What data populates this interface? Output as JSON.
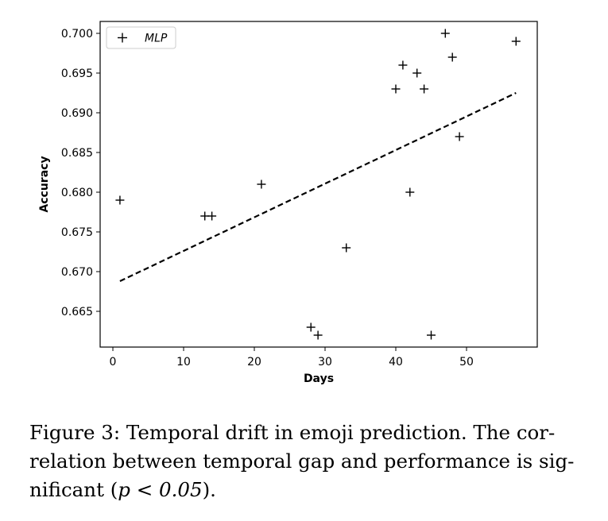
{
  "chart_data": {
    "type": "scatter",
    "xlabel": "Days",
    "ylabel": "Accuracy",
    "xlim": [
      -1.8,
      60
    ],
    "ylim": [
      0.6605,
      0.7015
    ],
    "xticks": [
      0,
      10,
      20,
      30,
      40,
      50
    ],
    "xtick_labels": [
      "0",
      "10",
      "20",
      "30",
      "40",
      "50"
    ],
    "yticks": [
      0.665,
      0.67,
      0.675,
      0.68,
      0.685,
      0.69,
      0.695,
      0.7
    ],
    "ytick_labels": [
      "0.665",
      "0.670",
      "0.675",
      "0.680",
      "0.685",
      "0.690",
      "0.695",
      "0.700"
    ],
    "grid": false,
    "legend_position": "top-left",
    "series": [
      {
        "name": "MLP",
        "marker": "+",
        "color": "#000000",
        "points": [
          {
            "x": 1,
            "y": 0.679
          },
          {
            "x": 13,
            "y": 0.677
          },
          {
            "x": 14,
            "y": 0.677
          },
          {
            "x": 21,
            "y": 0.681
          },
          {
            "x": 28,
            "y": 0.663
          },
          {
            "x": 29,
            "y": 0.662
          },
          {
            "x": 33,
            "y": 0.673
          },
          {
            "x": 40,
            "y": 0.693
          },
          {
            "x": 41,
            "y": 0.696
          },
          {
            "x": 42,
            "y": 0.68
          },
          {
            "x": 43,
            "y": 0.695
          },
          {
            "x": 44,
            "y": 0.693
          },
          {
            "x": 45,
            "y": 0.662
          },
          {
            "x": 47,
            "y": 0.7
          },
          {
            "x": 48,
            "y": 0.697
          },
          {
            "x": 49,
            "y": 0.687
          },
          {
            "x": 57,
            "y": 0.699
          }
        ]
      }
    ],
    "trend_line": {
      "style": "dashed",
      "color": "#000000",
      "x": [
        1,
        57
      ],
      "y": [
        0.6688,
        0.6925
      ]
    }
  },
  "caption": {
    "line1": "Figure 3: Temporal drift in emoji prediction. The cor-",
    "line2": "relation between temporal gap and performance is sig-",
    "line3_text": "nificant (",
    "line3_math": "p < 0.05",
    "line3_end": ")."
  }
}
